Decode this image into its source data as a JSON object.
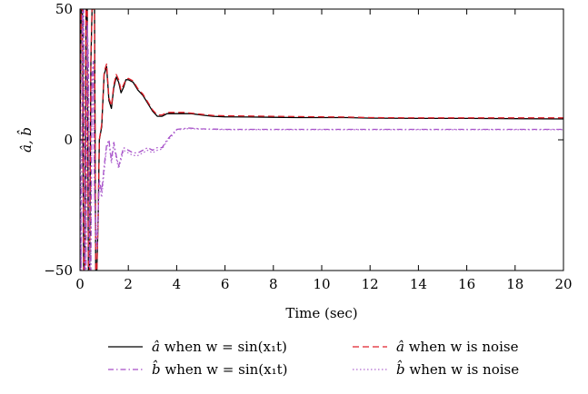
{
  "chart_data": {
    "type": "line",
    "title": "",
    "xlabel": "Time (sec)",
    "ylabel": "â, b̂",
    "xlim": [
      0,
      20
    ],
    "ylim": [
      -50,
      50
    ],
    "xticks": [
      0,
      2,
      4,
      6,
      8,
      10,
      12,
      14,
      16,
      18,
      20
    ],
    "yticks": [
      -50,
      0,
      50
    ],
    "xtick_labels": [
      "0",
      "2",
      "4",
      "6",
      "8",
      "10",
      "12",
      "14",
      "16",
      "18",
      "20"
    ],
    "ytick_labels": [
      "−50",
      "0",
      "50"
    ],
    "grid": false,
    "legend_position": "bottom",
    "series": [
      {
        "name": "â when w = sin(x₁t)",
        "color": "#000000",
        "style": "solid",
        "x": [
          0,
          0.05,
          0.1,
          0.15,
          0.2,
          0.25,
          0.3,
          0.35,
          0.4,
          0.45,
          0.5,
          0.55,
          0.6,
          0.65,
          0.7,
          0.75,
          0.8,
          0.9,
          1.0,
          1.1,
          1.2,
          1.3,
          1.4,
          1.5,
          1.6,
          1.7,
          1.8,
          1.9,
          2.0,
          2.2,
          2.4,
          2.6,
          2.8,
          3.0,
          3.2,
          3.4,
          3.6,
          3.8,
          4.0,
          4.3,
          4.6,
          5.0,
          5.5,
          6.0,
          7.0,
          8.0,
          9.0,
          10.0,
          11.0,
          12.0,
          14.0,
          16.0,
          18.0,
          20.0
        ],
        "y": [
          0,
          50,
          50,
          -50,
          -50,
          50,
          50,
          -50,
          -50,
          30,
          50,
          50,
          50,
          -50,
          -50,
          -30,
          0,
          5,
          25,
          28,
          15,
          12,
          20,
          24,
          22,
          18,
          20,
          23,
          23,
          22,
          19,
          17,
          14,
          11,
          9,
          9,
          10,
          10,
          10,
          10,
          10,
          9.5,
          9,
          8.8,
          8.7,
          8.6,
          8.5,
          8.5,
          8.5,
          8.3,
          8.2,
          8.2,
          8.1,
          8.0
        ]
      },
      {
        "name": "â when w is noise",
        "color": "#e0202a",
        "style": "dashed",
        "x": [
          0,
          0.05,
          0.1,
          0.15,
          0.2,
          0.25,
          0.3,
          0.35,
          0.4,
          0.45,
          0.5,
          0.55,
          0.6,
          0.65,
          0.7,
          0.75,
          0.8,
          0.9,
          1.0,
          1.1,
          1.2,
          1.3,
          1.4,
          1.5,
          1.6,
          1.7,
          1.8,
          1.9,
          2.0,
          2.2,
          2.4,
          2.6,
          2.8,
          3.0,
          3.2,
          3.4,
          3.6,
          3.8,
          4.0,
          4.3,
          4.6,
          5.0,
          5.5,
          6.0,
          7.0,
          8.0,
          9.0,
          10.0,
          11.0,
          12.0,
          14.0,
          16.0,
          18.0,
          20.0
        ],
        "y": [
          0,
          50,
          50,
          -50,
          -50,
          50,
          50,
          -50,
          -50,
          30,
          50,
          50,
          50,
          -50,
          -50,
          -30,
          0,
          6,
          26,
          29,
          16,
          13,
          21,
          25,
          23,
          19,
          21,
          23,
          23.5,
          22.5,
          19.5,
          17.5,
          14.5,
          11.5,
          9.5,
          9.5,
          10.5,
          10.5,
          10.5,
          10.5,
          10.2,
          9.8,
          9.3,
          9.2,
          9.1,
          9.0,
          8.9,
          8.8,
          8.7,
          8.5,
          8.4,
          8.4,
          8.4,
          8.4
        ]
      },
      {
        "name": "b̂ when w = sin(x₁t)",
        "color": "#a64dc8",
        "style": "dashdot",
        "x": [
          0,
          0.05,
          0.1,
          0.15,
          0.2,
          0.25,
          0.3,
          0.35,
          0.4,
          0.45,
          0.5,
          0.55,
          0.6,
          0.65,
          0.7,
          0.8,
          0.9,
          1.0,
          1.1,
          1.2,
          1.3,
          1.4,
          1.5,
          1.6,
          1.8,
          2.0,
          2.2,
          2.4,
          2.6,
          2.8,
          3.0,
          3.2,
          3.4,
          3.6,
          3.8,
          4.0,
          4.5,
          5.0,
          6.0,
          8.0,
          10.0,
          12.0,
          14.0,
          16.0,
          18.0,
          20.0
        ],
        "y": [
          0,
          -50,
          50,
          50,
          -50,
          -50,
          45,
          30,
          -50,
          -50,
          25,
          30,
          -20,
          -35,
          -40,
          -15,
          -20,
          -10,
          -2,
          0,
          -8,
          -1,
          -6,
          -10,
          -3,
          -4,
          -5,
          -5,
          -4,
          -3,
          -4,
          -3,
          -3,
          0,
          2,
          4,
          4.5,
          4.2,
          4.0,
          4.0,
          4.0,
          4.0,
          4.0,
          4.0,
          4.0,
          4.0
        ]
      },
      {
        "name": "b̂ when w is noise",
        "color": "#b06ad0",
        "style": "dotted",
        "x": [
          0,
          0.05,
          0.1,
          0.15,
          0.2,
          0.25,
          0.3,
          0.35,
          0.4,
          0.45,
          0.5,
          0.55,
          0.6,
          0.65,
          0.7,
          0.8,
          0.9,
          1.0,
          1.1,
          1.2,
          1.3,
          1.4,
          1.5,
          1.6,
          1.8,
          2.0,
          2.2,
          2.4,
          2.6,
          2.8,
          3.0,
          3.2,
          3.4,
          3.6,
          3.8,
          4.0,
          4.5,
          5.0,
          6.0,
          8.0,
          10.0,
          12.0,
          14.0,
          16.0,
          18.0,
          20.0
        ],
        "y": [
          0,
          -50,
          50,
          50,
          -50,
          -50,
          42,
          28,
          -50,
          -50,
          22,
          28,
          -22,
          -38,
          -42,
          -17,
          -22,
          -12,
          -3,
          -1,
          -9,
          -2,
          -7,
          -11,
          -4,
          -5,
          -6,
          -6,
          -5,
          -4,
          -5,
          -4,
          -3.5,
          -0.5,
          1.5,
          3.8,
          4.3,
          4.1,
          3.9,
          3.9,
          3.9,
          3.9,
          3.9,
          3.9,
          3.9,
          3.9
        ]
      }
    ]
  },
  "legend": {
    "items": [
      {
        "id": "a-sin",
        "symbol": "â",
        "text": " when w = sin(x₁t)",
        "color": "#000000",
        "dash": ""
      },
      {
        "id": "a-noise",
        "symbol": "â",
        "text": " when w is noise",
        "color": "#e0202a",
        "dash": "7 4"
      },
      {
        "id": "b-sin",
        "symbol": "b̂",
        "text": " when w = sin(x₁t)",
        "color": "#a64dc8",
        "dash": "6 3 1.5 3"
      },
      {
        "id": "b-noise",
        "symbol": "b̂",
        "text": " when w is noise",
        "color": "#b06ad0",
        "dash": "1.5 2.5"
      }
    ]
  }
}
